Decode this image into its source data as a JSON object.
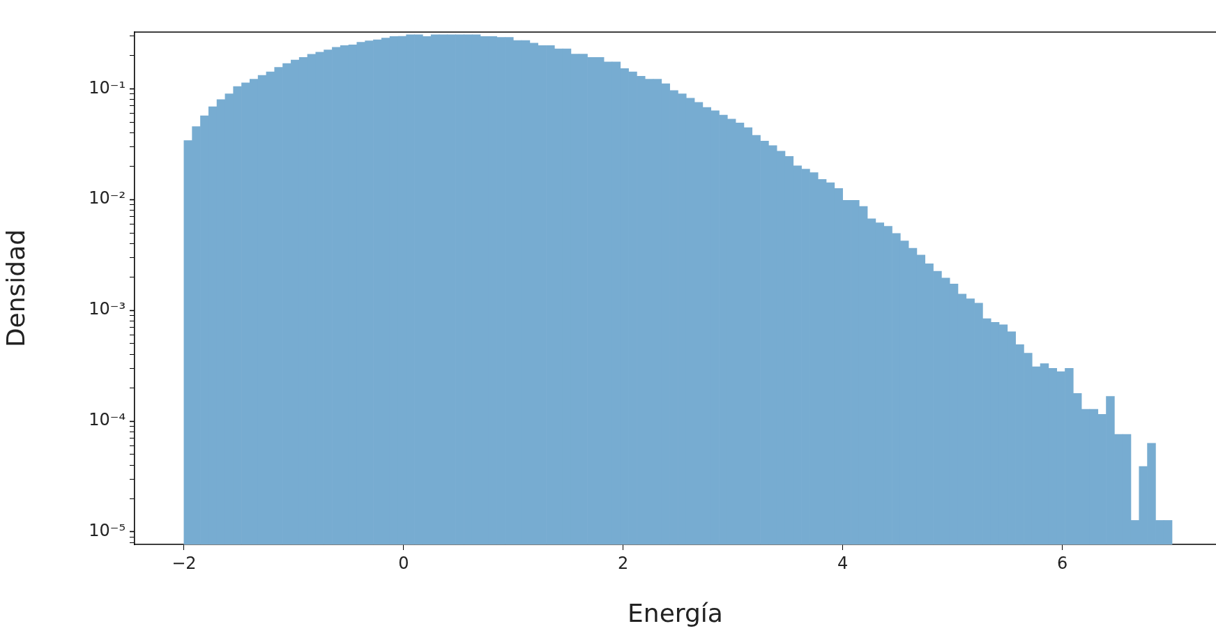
{
  "chart_data": {
    "type": "histogram",
    "xlabel": "Energía",
    "ylabel": "Densidad",
    "log": true,
    "grid": false,
    "legend": false,
    "color": "#77acd1",
    "bins": [
      -2,
      -1.925,
      -1.85,
      -1.775,
      -1.7,
      -1.625,
      -1.55,
      -1.475,
      -1.4,
      -1.325,
      -1.25,
      -1.175,
      -1.1,
      -1.025,
      -0.95,
      -0.875,
      -0.8,
      -0.725,
      -0.65,
      -0.575,
      -0.5,
      -0.425,
      -0.35,
      -0.275,
      -0.2,
      -0.125,
      -0.05,
      0.025,
      0.1,
      0.175,
      0.25,
      0.325,
      0.4,
      0.475,
      0.55,
      0.625,
      0.7,
      0.775,
      0.85,
      0.925,
      1,
      1.075,
      1.15,
      1.225,
      1.3,
      1.375,
      1.45,
      1.525,
      1.6,
      1.675,
      1.75,
      1.825,
      1.9,
      1.975,
      2.05,
      2.125,
      2.2,
      2.275,
      2.35,
      2.425,
      2.5,
      2.575,
      2.65,
      2.725,
      2.8,
      2.875,
      2.95,
      3.025,
      3.1,
      3.175,
      3.25,
      3.325,
      3.4,
      3.475,
      3.55,
      3.625,
      3.7,
      3.775,
      3.85,
      3.925,
      4,
      4.075,
      4.15,
      4.225,
      4.3,
      4.375,
      4.45,
      4.525,
      4.6,
      4.675,
      4.75,
      4.825,
      4.9,
      4.975,
      5.05,
      5.125,
      5.2,
      5.275,
      5.35,
      5.425,
      5.5,
      5.575,
      5.65,
      5.725,
      5.8,
      5.875,
      5.95,
      6.025,
      6.1,
      6.175,
      6.25,
      6.325,
      6.4,
      6.475,
      6.55,
      6.625,
      6.7,
      6.775,
      6.85,
      6.925,
      7
    ],
    "values": [
      0.0341,
      0.0456,
      0.057,
      0.0689,
      0.0799,
      0.09,
      0.105,
      0.113,
      0.122,
      0.132,
      0.142,
      0.156,
      0.169,
      0.182,
      0.192,
      0.205,
      0.214,
      0.224,
      0.237,
      0.246,
      0.249,
      0.263,
      0.271,
      0.277,
      0.287,
      0.296,
      0.298,
      0.308,
      0.308,
      0.297,
      0.308,
      0.308,
      0.308,
      0.308,
      0.308,
      0.308,
      0.297,
      0.297,
      0.291,
      0.291,
      0.273,
      0.273,
      0.258,
      0.246,
      0.246,
      0.229,
      0.229,
      0.206,
      0.206,
      0.192,
      0.192,
      0.175,
      0.175,
      0.152,
      0.142,
      0.13,
      0.122,
      0.122,
      0.111,
      0.0966,
      0.09,
      0.0821,
      0.0755,
      0.0679,
      0.0634,
      0.0579,
      0.0532,
      0.0492,
      0.0446,
      0.038,
      0.0337,
      0.0307,
      0.0273,
      0.0245,
      0.0202,
      0.0188,
      0.0175,
      0.0152,
      0.0142,
      0.0126,
      0.00986,
      0.00986,
      0.00868,
      0.0067,
      0.00616,
      0.00574,
      0.00495,
      0.00424,
      0.00363,
      0.00316,
      0.00263,
      0.00225,
      0.00196,
      0.00173,
      0.0014,
      0.00127,
      0.00116,
      0.00084,
      0.00078,
      0.00074,
      0.00064,
      0.00049,
      0.00041,
      0.00031,
      0.00033,
      0.0003,
      0.00028,
      0.0003,
      0.000178,
      0.000128,
      0.000128,
      0.000115,
      0.000167,
      7.6e-05,
      7.6e-05,
      1.27e-05,
      3.9e-05,
      6.3e-05,
      1.27e-05,
      1.27e-05
    ],
    "xlim": [
      -2.45,
      7.4
    ],
    "xticks": [
      {
        "value": -2,
        "label": "−2"
      },
      0,
      2,
      4,
      6
    ],
    "ylim": [
      7.7e-06,
      0.325
    ],
    "yticks": [
      {
        "value": 8e-06,
        "label": null
      },
      {
        "value": 9e-06,
        "label": null
      },
      {
        "value": 1e-05,
        "label": "10⁻⁵"
      },
      {
        "value": 2e-05,
        "label": null
      },
      {
        "value": 3e-05,
        "label": null
      },
      {
        "value": 4e-05,
        "label": null
      },
      {
        "value": 5e-05,
        "label": null
      },
      {
        "value": 6e-05,
        "label": null
      },
      {
        "value": 7e-05,
        "label": null
      },
      {
        "value": 8e-05,
        "label": null
      },
      {
        "value": 9e-05,
        "label": null
      },
      {
        "value": 0.0001,
        "label": "10⁻⁴"
      },
      {
        "value": 0.0002,
        "label": null
      },
      {
        "value": 0.0003,
        "label": null
      },
      {
        "value": 0.0004,
        "label": null
      },
      {
        "value": 0.0005,
        "label": null
      },
      {
        "value": 0.0006,
        "label": null
      },
      {
        "value": 0.0007,
        "label": null
      },
      {
        "value": 0.0008,
        "label": null
      },
      {
        "value": 0.0009,
        "label": null
      },
      {
        "value": 0.001,
        "label": "10⁻³"
      },
      {
        "value": 0.002,
        "label": null
      },
      {
        "value": 0.003,
        "label": null
      },
      {
        "value": 0.004,
        "label": null
      },
      {
        "value": 0.005,
        "label": null
      },
      {
        "value": 0.006,
        "label": null
      },
      {
        "value": 0.007,
        "label": null
      },
      {
        "value": 0.008,
        "label": null
      },
      {
        "value": 0.009,
        "label": null
      },
      {
        "value": 0.01,
        "label": "10⁻²"
      },
      {
        "value": 0.02,
        "label": null
      },
      {
        "value": 0.03,
        "label": null
      },
      {
        "value": 0.04,
        "label": null
      },
      {
        "value": 0.05,
        "label": null
      },
      {
        "value": 0.06,
        "label": null
      },
      {
        "value": 0.07,
        "label": null
      },
      {
        "value": 0.08,
        "label": null
      },
      {
        "value": 0.09,
        "label": null
      },
      {
        "value": 0.1,
        "label": "10⁻¹"
      },
      {
        "value": 0.2,
        "label": null
      },
      {
        "value": 0.3,
        "label": null
      }
    ]
  }
}
